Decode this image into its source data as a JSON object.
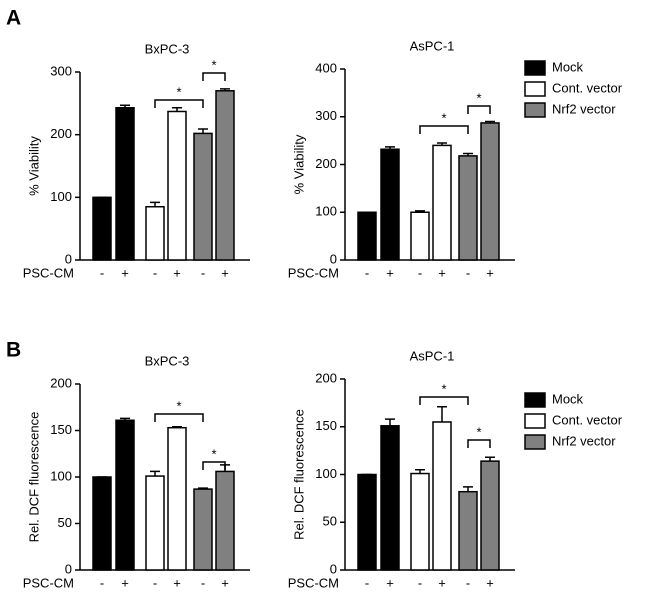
{
  "panels": [
    "A",
    "B"
  ],
  "chart_data": [
    {
      "type": "bar",
      "title": "BxPC-3",
      "ylabel": "% Viability",
      "x_row_label": "PSC-CM",
      "categories": [
        "-",
        "+"
      ],
      "ylim": [
        0,
        300
      ],
      "yticks": [
        0,
        100,
        200,
        300
      ],
      "legend": false,
      "series": [
        {
          "color": "#000000",
          "values": [
            100,
            243
          ],
          "errors": [
            0,
            4
          ]
        },
        {
          "color": "#ffffff",
          "values": [
            85,
            237
          ],
          "errors": [
            7,
            6
          ]
        },
        {
          "color": "#808080",
          "values": [
            202,
            270
          ],
          "errors": [
            7,
            3
          ]
        }
      ],
      "annotations": [
        "*",
        "*"
      ]
    },
    {
      "type": "bar",
      "title": "AsPC-1",
      "ylabel": "% Viability",
      "x_row_label": "PSC-CM",
      "categories": [
        "-",
        "+"
      ],
      "ylim": [
        0,
        400
      ],
      "yticks": [
        0,
        100,
        200,
        300,
        400
      ],
      "legend": true,
      "series": [
        {
          "name": "Mock",
          "color": "#000000",
          "values": [
            100,
            232
          ],
          "errors": [
            0,
            5
          ]
        },
        {
          "name": "Cont. vector",
          "color": "#ffffff",
          "values": [
            100,
            240
          ],
          "errors": [
            3,
            5
          ]
        },
        {
          "name": "Nrf2 vector",
          "color": "#808080",
          "values": [
            218,
            287
          ],
          "errors": [
            5,
            3
          ]
        }
      ],
      "annotations": [
        "*",
        "*"
      ]
    },
    {
      "type": "bar",
      "title": "BxPC-3",
      "ylabel": "Rel. DCF fluorescence",
      "x_row_label": "PSC-CM",
      "categories": [
        "-",
        "+"
      ],
      "ylim": [
        0,
        200
      ],
      "yticks": [
        0,
        50,
        100,
        150,
        200
      ],
      "legend": false,
      "series": [
        {
          "color": "#000000",
          "values": [
            100,
            161
          ],
          "errors": [
            0,
            2
          ]
        },
        {
          "color": "#ffffff",
          "values": [
            101,
            153
          ],
          "errors": [
            5,
            1
          ]
        },
        {
          "color": "#808080",
          "values": [
            87,
            106
          ],
          "errors": [
            1,
            7
          ]
        }
      ],
      "annotations": [
        "*",
        "*"
      ]
    },
    {
      "type": "bar",
      "title": "AsPC-1",
      "ylabel": "Rel. DCF fluorescence",
      "x_row_label": "PSC-CM",
      "categories": [
        "-",
        "+"
      ],
      "ylim": [
        0,
        200
      ],
      "yticks": [
        0,
        50,
        100,
        150,
        200
      ],
      "legend": true,
      "series": [
        {
          "name": "Mock",
          "color": "#000000",
          "values": [
            100,
            151
          ],
          "errors": [
            0,
            7
          ]
        },
        {
          "name": "Cont. vector",
          "color": "#ffffff",
          "values": [
            101,
            155
          ],
          "errors": [
            4,
            16
          ]
        },
        {
          "name": "Nrf2 vector",
          "color": "#808080",
          "values": [
            82,
            114
          ],
          "errors": [
            5,
            4
          ]
        }
      ],
      "annotations": [
        "*",
        "*"
      ]
    }
  ]
}
